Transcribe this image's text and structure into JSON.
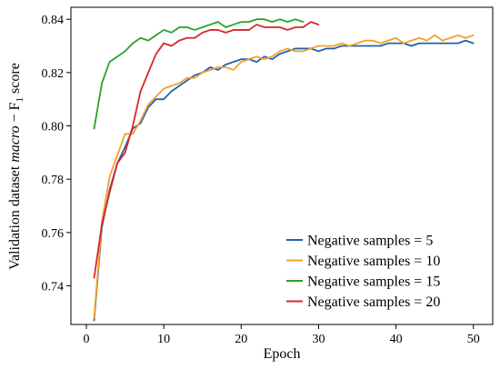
{
  "chart_data": {
    "type": "line",
    "xlabel": "Epoch",
    "ylabel": {
      "prefix": "Validation dataset ",
      "italic": "macro",
      "mid": " − F",
      "sub": "1",
      "suffix": " score"
    },
    "xlim": [
      -2,
      52.5
    ],
    "ylim": [
      0.7255,
      0.8445
    ],
    "xticks": [
      0,
      10,
      20,
      30,
      40,
      50
    ],
    "yticks": [
      0.74,
      0.76,
      0.78,
      0.8,
      0.82,
      0.84
    ],
    "ytick_labels": [
      "0.74",
      "0.76",
      "0.78",
      "0.80",
      "0.82",
      "0.84"
    ],
    "legend_position": "lower-right",
    "grid": false,
    "series": [
      {
        "name": "Negative samples = 5",
        "color": "#2062ab",
        "x": [
          1,
          2,
          3,
          4,
          5,
          6,
          7,
          8,
          9,
          10,
          11,
          12,
          13,
          14,
          15,
          16,
          17,
          18,
          19,
          20,
          21,
          22,
          23,
          24,
          25,
          26,
          27,
          28,
          29,
          30,
          31,
          32,
          33,
          34,
          35,
          36,
          37,
          38,
          39,
          40,
          41,
          42,
          43,
          44,
          45,
          46,
          47,
          48,
          49,
          50
        ],
        "y": [
          0.727,
          0.762,
          0.776,
          0.786,
          0.792,
          0.799,
          0.801,
          0.807,
          0.81,
          0.81,
          0.813,
          0.815,
          0.817,
          0.819,
          0.82,
          0.822,
          0.821,
          0.823,
          0.824,
          0.825,
          0.825,
          0.824,
          0.826,
          0.825,
          0.827,
          0.828,
          0.829,
          0.829,
          0.829,
          0.828,
          0.829,
          0.829,
          0.83,
          0.83,
          0.83,
          0.83,
          0.83,
          0.83,
          0.831,
          0.831,
          0.831,
          0.83,
          0.831,
          0.831,
          0.831,
          0.831,
          0.831,
          0.831,
          0.832,
          0.831
        ]
      },
      {
        "name": "Negative samples = 10",
        "color": "#f0a12b",
        "x": [
          1,
          2,
          3,
          4,
          5,
          6,
          7,
          8,
          9,
          10,
          11,
          12,
          13,
          14,
          15,
          16,
          17,
          18,
          19,
          20,
          21,
          22,
          23,
          24,
          25,
          26,
          27,
          28,
          29,
          30,
          31,
          32,
          33,
          34,
          35,
          36,
          37,
          38,
          39,
          40,
          41,
          42,
          43,
          44,
          45,
          46,
          47,
          48,
          49,
          50
        ],
        "y": [
          0.728,
          0.764,
          0.781,
          0.789,
          0.797,
          0.797,
          0.802,
          0.808,
          0.811,
          0.814,
          0.815,
          0.816,
          0.818,
          0.818,
          0.82,
          0.821,
          0.822,
          0.822,
          0.821,
          0.824,
          0.825,
          0.826,
          0.825,
          0.826,
          0.828,
          0.829,
          0.828,
          0.828,
          0.829,
          0.83,
          0.83,
          0.83,
          0.831,
          0.83,
          0.831,
          0.832,
          0.832,
          0.831,
          0.832,
          0.833,
          0.831,
          0.832,
          0.833,
          0.832,
          0.834,
          0.832,
          0.833,
          0.834,
          0.833,
          0.834
        ]
      },
      {
        "name": "Negative samples = 15",
        "color": "#2ba02b",
        "x": [
          1,
          2,
          3,
          4,
          5,
          6,
          7,
          8,
          9,
          10,
          11,
          12,
          13,
          14,
          15,
          16,
          17,
          18,
          19,
          20,
          21,
          22,
          23,
          24,
          25,
          26,
          27,
          28
        ],
        "y": [
          0.799,
          0.816,
          0.824,
          0.826,
          0.828,
          0.831,
          0.833,
          0.832,
          0.834,
          0.836,
          0.835,
          0.837,
          0.837,
          0.836,
          0.837,
          0.838,
          0.839,
          0.837,
          0.838,
          0.839,
          0.839,
          0.84,
          0.84,
          0.839,
          0.84,
          0.839,
          0.84,
          0.839
        ]
      },
      {
        "name": "Negative samples = 20",
        "color": "#d62728",
        "x": [
          1,
          2,
          3,
          4,
          5,
          6,
          7,
          8,
          9,
          10,
          11,
          12,
          13,
          14,
          15,
          16,
          17,
          18,
          19,
          20,
          21,
          22,
          23,
          24,
          25,
          26,
          27,
          28,
          29,
          30
        ],
        "y": [
          0.743,
          0.763,
          0.775,
          0.786,
          0.79,
          0.8,
          0.813,
          0.82,
          0.827,
          0.831,
          0.83,
          0.832,
          0.833,
          0.833,
          0.835,
          0.836,
          0.836,
          0.835,
          0.836,
          0.836,
          0.836,
          0.838,
          0.837,
          0.837,
          0.837,
          0.836,
          0.837,
          0.837,
          0.839,
          0.838
        ]
      }
    ]
  }
}
